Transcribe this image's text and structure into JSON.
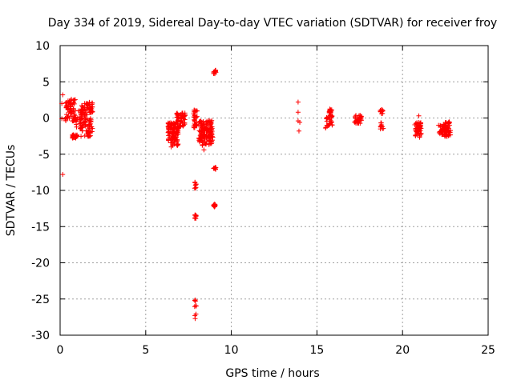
{
  "chart_data": {
    "type": "scatter",
    "title": "Day 334 of 2019, Sidereal Day-to-day VTEC variation (SDTVAR) for receiver froy",
    "xlabel": "GPS time / hours",
    "ylabel": "SDTVAR / TECUs",
    "xlim": [
      0,
      25
    ],
    "ylim": [
      -30,
      10
    ],
    "xticks": [
      0,
      5,
      10,
      15,
      20,
      25
    ],
    "yticks": [
      10,
      5,
      0,
      -5,
      -10,
      -15,
      -20,
      -25,
      -30
    ],
    "grid": true,
    "marker": "+",
    "color": "#ff0000",
    "clusters": [
      {
        "x0": 0.3,
        "x1": 0.9,
        "ymin": -0.5,
        "ymax": 2.7,
        "n": 70
      },
      {
        "x0": 0.6,
        "x1": 1.0,
        "ymin": -2.8,
        "ymax": -2.3,
        "n": 25
      },
      {
        "x0": 0.9,
        "x1": 1.3,
        "ymin": -1.5,
        "ymax": 1.2,
        "n": 25
      },
      {
        "x0": 1.2,
        "x1": 1.9,
        "ymin": 0.3,
        "ymax": 2.2,
        "n": 60
      },
      {
        "x0": 1.2,
        "x1": 1.9,
        "ymin": -2.6,
        "ymax": 0.0,
        "n": 60
      },
      {
        "x0": 6.3,
        "x1": 6.9,
        "ymin": -4.0,
        "ymax": -0.5,
        "n": 110
      },
      {
        "x0": 6.8,
        "x1": 7.3,
        "ymin": -1.5,
        "ymax": 0.7,
        "n": 55
      },
      {
        "x0": 7.8,
        "x1": 8.0,
        "ymin": -1.5,
        "ymax": 1.2,
        "n": 30
      },
      {
        "x0": 8.1,
        "x1": 8.9,
        "ymin": -3.8,
        "ymax": -0.3,
        "n": 120
      },
      {
        "x0": 8.4,
        "x1": 9.0,
        "ymin": -2.7,
        "ymax": -1.5,
        "n": 25
      },
      {
        "x0": 8.95,
        "x1": 9.1,
        "ymin": 6.1,
        "ymax": 6.6,
        "n": 12
      },
      {
        "x0": 8.95,
        "x1": 9.1,
        "ymin": -7.2,
        "ymax": -6.8,
        "n": 8
      },
      {
        "x0": 8.95,
        "x1": 9.1,
        "ymin": -12.3,
        "ymax": -11.9,
        "n": 10
      },
      {
        "x0": 7.85,
        "x1": 7.95,
        "ymin": -9.7,
        "ymax": -8.8,
        "n": 8
      },
      {
        "x0": 7.85,
        "x1": 7.95,
        "ymin": -14.0,
        "ymax": -12.8,
        "n": 8
      },
      {
        "x0": 7.85,
        "x1": 7.95,
        "ymin": -27.8,
        "ymax": -25.0,
        "n": 9
      },
      {
        "x0": 15.5,
        "x1": 15.7,
        "ymin": -1.5,
        "ymax": 0.2,
        "n": 12
      },
      {
        "x0": 15.7,
        "x1": 15.9,
        "ymin": -1.0,
        "ymax": 1.3,
        "n": 35
      },
      {
        "x0": 17.2,
        "x1": 17.6,
        "ymin": -0.8,
        "ymax": 0.4,
        "n": 35
      },
      {
        "x0": 18.7,
        "x1": 18.9,
        "ymin": 0.5,
        "ymax": 1.2,
        "n": 10
      },
      {
        "x0": 18.7,
        "x1": 18.9,
        "ymin": -1.8,
        "ymax": -0.3,
        "n": 10
      },
      {
        "x0": 20.7,
        "x1": 21.1,
        "ymin": -2.8,
        "ymax": -0.6,
        "n": 45
      },
      {
        "x0": 22.1,
        "x1": 22.4,
        "ymin": -2.3,
        "ymax": -1.0,
        "n": 20
      },
      {
        "x0": 22.4,
        "x1": 22.8,
        "ymin": -2.6,
        "ymax": -0.5,
        "n": 60
      }
    ],
    "points": [
      [
        0.15,
        3.2
      ],
      [
        0.1,
        2.0
      ],
      [
        0.1,
        -0.1
      ],
      [
        0.15,
        -7.8
      ],
      [
        13.9,
        2.2
      ],
      [
        13.9,
        0.8
      ],
      [
        13.9,
        -0.4
      ],
      [
        14.0,
        -0.6
      ],
      [
        13.95,
        -1.8
      ],
      [
        20.95,
        0.3
      ],
      [
        8.4,
        -4.4
      ],
      [
        7.9,
        0.9
      ],
      [
        8.0,
        0.2
      ]
    ]
  }
}
